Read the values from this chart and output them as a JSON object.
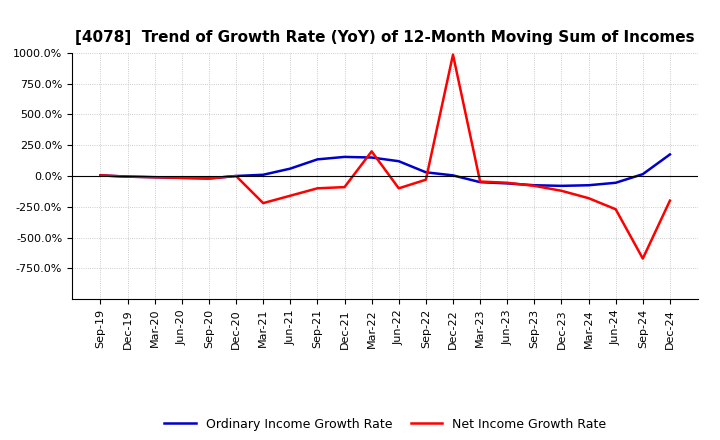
{
  "title": "[4078]  Trend of Growth Rate (YoY) of 12-Month Moving Sum of Incomes",
  "x_labels": [
    "Sep-19",
    "Dec-19",
    "Mar-20",
    "Jun-20",
    "Sep-20",
    "Dec-20",
    "Mar-21",
    "Jun-21",
    "Sep-21",
    "Dec-21",
    "Mar-22",
    "Jun-22",
    "Sep-22",
    "Dec-22",
    "Mar-23",
    "Jun-23",
    "Sep-23",
    "Dec-23",
    "Mar-24",
    "Jun-24",
    "Sep-24",
    "Dec-24"
  ],
  "ordinary_income": [
    5,
    -5,
    -10,
    -15,
    -20,
    0,
    10,
    60,
    135,
    155,
    150,
    120,
    30,
    5,
    -50,
    -60,
    -75,
    -80,
    -75,
    -55,
    15,
    175
  ],
  "net_income": [
    5,
    -5,
    -10,
    -15,
    -20,
    0,
    -220,
    -160,
    -100,
    -90,
    200,
    -100,
    -30,
    985,
    -45,
    -55,
    -80,
    -120,
    -180,
    -270,
    -670,
    -200
  ],
  "blue_color": "#0000CC",
  "red_color": "#FF0000",
  "background_color": "#FFFFFF",
  "grid_color": "#BBBBBB",
  "ylim": [
    -1000,
    1000
  ],
  "yticks": [
    -750,
    -500,
    -250,
    0,
    250,
    500,
    750,
    1000
  ],
  "legend_labels": [
    "Ordinary Income Growth Rate",
    "Net Income Growth Rate"
  ],
  "title_fontsize": 11,
  "tick_fontsize": 8,
  "legend_fontsize": 9
}
